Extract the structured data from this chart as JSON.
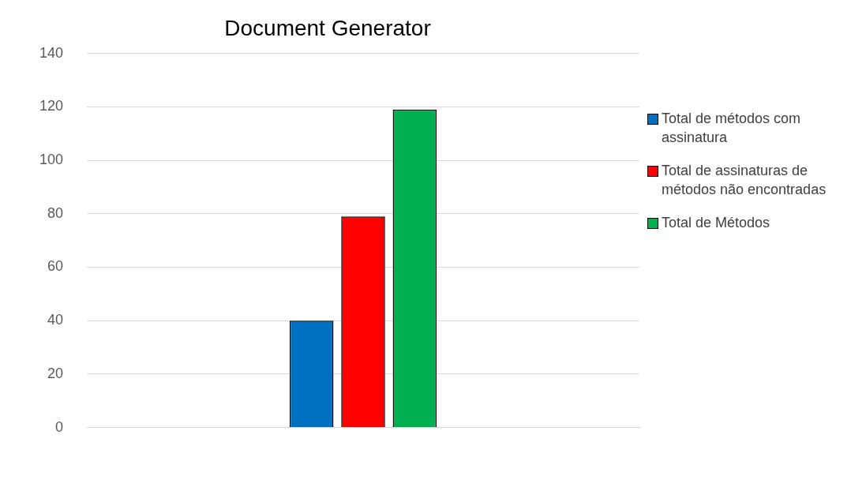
{
  "chart_data": {
    "type": "bar",
    "title": "Document Generator",
    "categories": [
      null
    ],
    "series": [
      {
        "name": "Total de métodos com assinatura",
        "color": "#0070c0",
        "values": [
          40
        ]
      },
      {
        "name": "Total de assinaturas de métodos não encontradas",
        "color": "#ff0000",
        "values": [
          79
        ]
      },
      {
        "name": "Total de Métodos",
        "color": "#00b050",
        "values": [
          119
        ]
      }
    ],
    "ylim": [
      0,
      140
    ],
    "yticks": [
      0,
      20,
      40,
      60,
      80,
      100,
      120,
      140
    ],
    "grid": "y",
    "legend": "right"
  }
}
